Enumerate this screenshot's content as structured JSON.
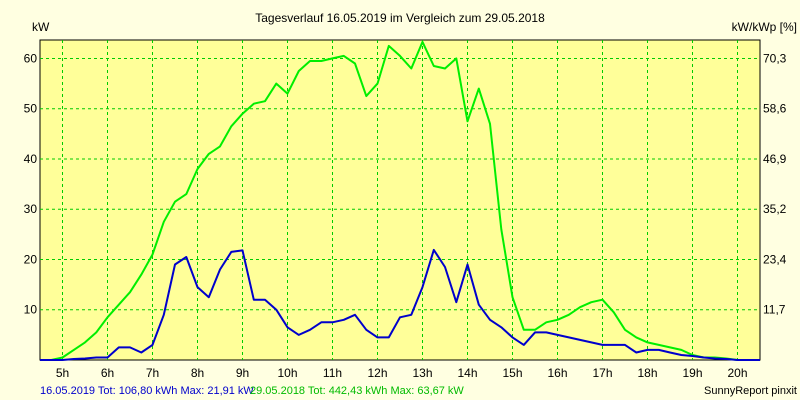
{
  "chart_data": {
    "type": "line",
    "title": "Tagesverlauf 16.05.2019 im Vergleich zum 29.05.2018",
    "ylabel_left": "kW",
    "ylabel_right": "kW/kWp [%]",
    "ylim": [
      0,
      63.67
    ],
    "y_ticks": [
      10,
      20,
      30,
      40,
      50,
      60
    ],
    "y_ticks_right": [
      "11,7",
      "23,4",
      "35,2",
      "46,9",
      "58,6",
      "70,3"
    ],
    "x_range": [
      4.5,
      20.5
    ],
    "x_ticks": [
      "5h",
      "6h",
      "7h",
      "8h",
      "9h",
      "10h",
      "11h",
      "12h",
      "13h",
      "14h",
      "15h",
      "16h",
      "17h",
      "18h",
      "19h",
      "20h"
    ],
    "grid": true,
    "series": [
      {
        "color": "#00ee00",
        "x": [
          4.5,
          4.75,
          5.0,
          5.25,
          5.5,
          5.75,
          6.0,
          6.25,
          6.5,
          6.75,
          7.0,
          7.25,
          7.5,
          7.75,
          8.0,
          8.25,
          8.5,
          8.75,
          9.0,
          9.25,
          9.5,
          9.75,
          10.0,
          10.25,
          10.5,
          10.75,
          11.0,
          11.25,
          11.5,
          11.75,
          12.0,
          12.25,
          12.5,
          12.75,
          13.0,
          13.25,
          13.5,
          13.75,
          14.0,
          14.25,
          14.5,
          14.75,
          15.0,
          15.25,
          15.5,
          15.75,
          16.0,
          16.25,
          16.5,
          16.75,
          17.0,
          17.25,
          17.5,
          17.75,
          18.0,
          18.25,
          18.5,
          18.75,
          19.0,
          19.25,
          19.5,
          19.75,
          20.0,
          20.25,
          20.5
        ],
        "y": [
          0,
          0,
          0.5,
          2,
          3.5,
          5.5,
          8.5,
          11,
          13.5,
          17,
          21,
          27.5,
          31.5,
          33,
          38,
          41,
          42.5,
          46.5,
          49,
          51,
          51.5,
          55,
          53,
          57.5,
          59.5,
          59.5,
          60,
          60.5,
          59,
          52.5,
          55,
          62.5,
          60.5,
          58,
          63.3,
          58.5,
          58,
          60,
          47.5,
          54,
          47,
          26,
          12.5,
          6,
          6,
          7.5,
          8,
          9,
          10.5,
          11.5,
          12,
          9.5,
          6,
          4.5,
          3.5,
          3,
          2.5,
          2,
          1,
          0.5,
          0.5,
          0.3,
          0,
          0,
          0
        ]
      },
      {
        "color": "#0000cc",
        "x": [
          4.5,
          4.75,
          5.0,
          5.25,
          5.5,
          5.75,
          6.0,
          6.25,
          6.5,
          6.75,
          7.0,
          7.25,
          7.5,
          7.75,
          8.0,
          8.25,
          8.5,
          8.75,
          9.0,
          9.25,
          9.5,
          9.75,
          10.0,
          10.25,
          10.5,
          10.75,
          11.0,
          11.25,
          11.5,
          11.75,
          12.0,
          12.25,
          12.5,
          12.75,
          13.0,
          13.25,
          13.5,
          13.75,
          14.0,
          14.25,
          14.5,
          14.75,
          15.0,
          15.25,
          15.5,
          15.75,
          16.0,
          16.25,
          16.5,
          16.75,
          17.0,
          17.25,
          17.5,
          17.75,
          18.0,
          18.25,
          18.5,
          18.75,
          19.0,
          19.25,
          19.5,
          19.75,
          20.0,
          20.25,
          20.5
        ],
        "y": [
          0,
          0,
          0,
          0.2,
          0.3,
          0.5,
          0.5,
          2.5,
          2.5,
          1.5,
          3,
          9,
          19,
          20.5,
          14.5,
          12.5,
          18,
          21.5,
          21.8,
          12,
          12,
          10,
          6.5,
          5,
          6,
          7.5,
          7.5,
          8,
          9,
          6,
          4.5,
          4.5,
          8.5,
          9,
          14.5,
          21.9,
          18.5,
          11.5,
          19,
          11,
          8,
          6.5,
          4.5,
          3,
          5.5,
          5.5,
          5,
          4.5,
          4,
          3.5,
          3,
          3,
          3,
          1.5,
          2,
          2,
          1.5,
          1,
          0.8,
          0.5,
          0.3,
          0.2,
          0,
          0,
          0
        ]
      }
    ]
  },
  "footer": {
    "blue_text": "16.05.2019 Tot: 106,80 kWh Max: 21,91 kW",
    "green_text": "29.05.2018 Tot: 442,43 kWh Max: 63,67 kW",
    "right_text": "SunnyReport pinxit"
  },
  "colors": {
    "background": "#ffffe1",
    "plot_background": "#ffff99",
    "grid": "#00cc00",
    "blue": "#0000cc",
    "green": "#00ee00"
  }
}
